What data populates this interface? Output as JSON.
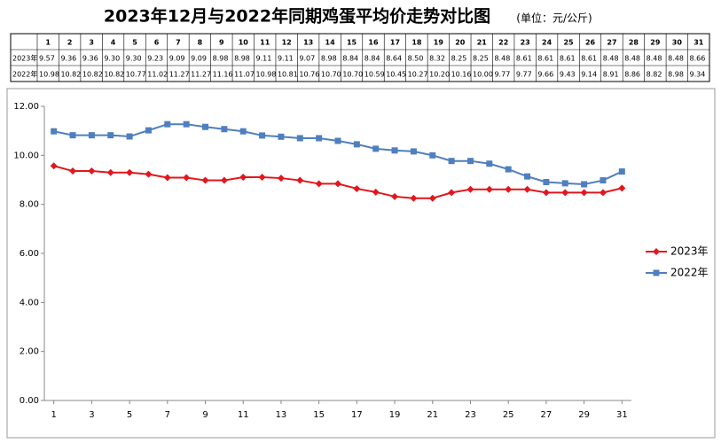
{
  "chart_data": {
    "type": "line",
    "title": "2023年12月与2022年同期鸡蛋平均价走势对比图",
    "subtitle": "(单位：元/公斤)",
    "x": [
      1,
      2,
      3,
      4,
      5,
      6,
      7,
      8,
      9,
      10,
      11,
      12,
      13,
      14,
      15,
      16,
      17,
      18,
      19,
      20,
      21,
      22,
      23,
      24,
      25,
      26,
      27,
      28,
      29,
      30,
      31
    ],
    "xlim": [
      0.5,
      31.5
    ],
    "xticks": [
      1,
      3,
      5,
      7,
      9,
      11,
      13,
      15,
      17,
      19,
      21,
      23,
      25,
      27,
      29,
      31
    ],
    "ylim": [
      0,
      12
    ],
    "yticks": [
      {
        "value": 0,
        "label": "0.00"
      },
      {
        "value": 2,
        "label": "2.00"
      },
      {
        "value": 4,
        "label": "4.00"
      },
      {
        "value": 6,
        "label": "6.00"
      },
      {
        "value": 8,
        "label": "8.00"
      },
      {
        "value": 10,
        "label": "10.00"
      },
      {
        "value": 12,
        "label": "12.00"
      }
    ],
    "grid": false,
    "legend": "right",
    "series": [
      {
        "name": "2023年",
        "color": "#e3161d",
        "marker": "diamond",
        "values": [
          9.57,
          9.36,
          9.36,
          9.3,
          9.3,
          9.23,
          9.09,
          9.09,
          8.98,
          8.98,
          9.11,
          9.11,
          9.07,
          8.98,
          8.84,
          8.84,
          8.64,
          8.5,
          8.32,
          8.25,
          8.25,
          8.48,
          8.61,
          8.61,
          8.61,
          8.61,
          8.48,
          8.48,
          8.48,
          8.48,
          8.66
        ],
        "value_labels": [
          "9.57",
          "9.36",
          "9.36",
          "9.30",
          "9.30",
          "9.23",
          "9.09",
          "9.09",
          "8.98",
          "8.98",
          "9.11",
          "9.11",
          "9.07",
          "8.98",
          "8.84",
          "8.84",
          "8.64",
          "8.50",
          "8.32",
          "8.25",
          "8.25",
          "8.48",
          "8.61",
          "8.61",
          "8.61",
          "8.61",
          "8.48",
          "8.48",
          "8.48",
          "8.48",
          "8.66"
        ]
      },
      {
        "name": "2022年",
        "color": "#4f7fbf",
        "marker": "square",
        "values": [
          10.98,
          10.82,
          10.82,
          10.82,
          10.77,
          11.02,
          11.27,
          11.27,
          11.16,
          11.07,
          10.98,
          10.81,
          10.76,
          10.7,
          10.7,
          10.59,
          10.45,
          10.27,
          10.2,
          10.16,
          10.0,
          9.77,
          9.77,
          9.66,
          9.43,
          9.14,
          8.91,
          8.86,
          8.82,
          8.98,
          9.34
        ],
        "value_labels": [
          "10.98",
          "10.82",
          "10.82",
          "10.82",
          "10.77",
          "11.02",
          "11.27",
          "11.27",
          "11.16",
          "11.07",
          "10.98",
          "10.81",
          "10.76",
          "10.70",
          "10.70",
          "10.59",
          "10.45",
          "10.27",
          "10.20",
          "10.16",
          "10.00",
          "9.77",
          "9.77",
          "9.66",
          "9.43",
          "9.14",
          "8.91",
          "8.86",
          "8.82",
          "8.98",
          "9.34"
        ]
      }
    ]
  }
}
